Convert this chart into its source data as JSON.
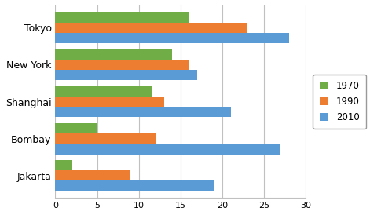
{
  "cities": [
    "Jakarta",
    "Bombay",
    "Shanghai",
    "New York",
    "Tokyo"
  ],
  "series": {
    "1970": [
      2,
      5,
      11.5,
      14,
      16
    ],
    "1990": [
      9,
      12,
      13,
      16,
      23
    ],
    "2010": [
      19,
      27,
      21,
      17,
      28
    ]
  },
  "colors": {
    "1970": "#70AD47",
    "1990": "#ED7D31",
    "2010": "#5B9BD5"
  },
  "xlim": [
    0,
    30
  ],
  "xticks": [
    0,
    5,
    10,
    15,
    20,
    25,
    30
  ],
  "legend_labels": [
    "1970",
    "1990",
    "2010"
  ],
  "bar_height": 0.28,
  "background_color": "#FFFFFF",
  "grid_color": "#C0C0C0"
}
